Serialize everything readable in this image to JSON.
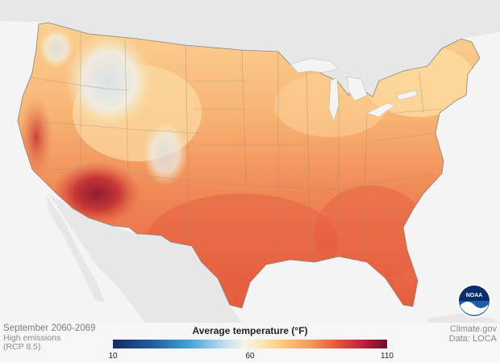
{
  "caption": {
    "period": "September 2060-2069",
    "scenario_line1": "High emissions",
    "scenario_line2": "(RCP 8.5)"
  },
  "credits": {
    "source": "Climate.gov",
    "data": "Data: LOCA"
  },
  "logo": {
    "text": "NOAA",
    "icon": "noaa-logo-icon"
  },
  "legend": {
    "title": "Average temperature (°F)",
    "min_label": "10",
    "mid_label": "60",
    "max_label": "110",
    "colors": [
      "#152a68",
      "#2261a3",
      "#41a5d9",
      "#b9dbef",
      "#f7f3ea",
      "#fbe6a8",
      "#fbc87c",
      "#f59b5a",
      "#e4543a",
      "#b81e3b",
      "#6b0f2b"
    ]
  },
  "map": {
    "region": "Contiguous United States",
    "variable": "Average temperature",
    "land_color": "#e7e7e7",
    "water_color": "#f4f4f4"
  }
}
